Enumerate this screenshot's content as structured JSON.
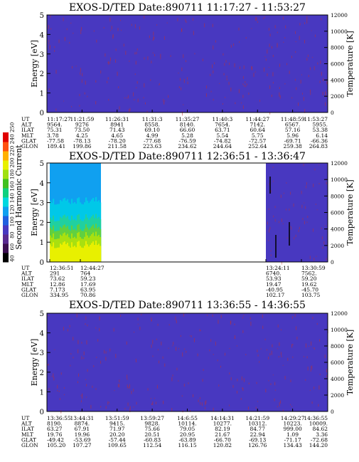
{
  "colors": {
    "background": "#4838c0",
    "speckle": "#c03030",
    "frame": "#000000",
    "colorbar": [
      "#000000",
      "#3c1050",
      "#5a2a90",
      "#4838c0",
      "#2060e0",
      "#10a0f0",
      "#00d8e0",
      "#10d080",
      "#40c020",
      "#a0e010",
      "#e8f000",
      "#ffb000",
      "#ff5010",
      "#e00000"
    ]
  },
  "colorbar": {
    "label": "Second Harmonic Current",
    "ticks": [
      "40",
      "60",
      "80",
      "100",
      "120",
      "140",
      "160",
      "180",
      "200",
      "220",
      "240",
      "250"
    ]
  },
  "chart_data": [
    {
      "type": "heatmap",
      "title": "EXOS-D/TED  Date:890711  11:17:27 - 11:53:27",
      "ylabel": "Energy [eV]",
      "y2label": "Temperature [K]",
      "ylim": [
        0,
        5
      ],
      "y2lim": [
        0,
        12000
      ],
      "yticks": [
        "0",
        "1",
        "2",
        "3",
        "4",
        "5"
      ],
      "y2ticks": [
        "0",
        "2000",
        "4000",
        "6000",
        "8000",
        "10000",
        "12000"
      ],
      "rows": [
        {
          "label": "UT",
          "values": [
            "11:17:27",
            "11:21:59",
            "11:26:31",
            "11:31:3",
            "11:35:27",
            "11:40:3",
            "11:44:27",
            "11:48:59",
            "11:53:27"
          ]
        },
        {
          "label": "ALT",
          "values": [
            "9564.",
            "9276",
            "8941",
            "8558.",
            "8140.",
            "7654.",
            "7142.",
            "6567.",
            "5955."
          ]
        },
        {
          "label": "ILAT",
          "values": [
            "75.31",
            "73.50",
            "71.43",
            "69.10",
            "66.60",
            "63.71",
            "60.64",
            "57.16",
            "53.38"
          ]
        },
        {
          "label": "MLT",
          "values": [
            "3.78",
            "4.25",
            "4.65",
            "4.99",
            "5.28",
            "5.54",
            "5.75",
            "5.96",
            "6.14"
          ]
        },
        {
          "label": "GLAT",
          "values": [
            "-77.58",
            "-78.13",
            "-78.20",
            "-77.68",
            "-76.59",
            "-74.82",
            "-72.57",
            "-69.71",
            "-66.36"
          ]
        },
        {
          "label": "GLON",
          "values": [
            "189.41",
            "199.86",
            "211.58",
            "223.63",
            "234.62",
            "244.64",
            "252.64",
            "259.38",
            "264.83"
          ]
        }
      ]
    },
    {
      "type": "heatmap",
      "title": "EXOS-D/TED  Date:890711  12:36:51 - 13:36:47",
      "ylabel": "Energy [eV]",
      "y2label": "Temperature [K]",
      "ylim": [
        0,
        5
      ],
      "y2lim": [
        0,
        12000
      ],
      "yticks": [
        "0",
        "1",
        "2",
        "3",
        "4",
        "5"
      ],
      "y2ticks": [
        "0",
        "2000",
        "4000",
        "6000",
        "8000",
        "10000",
        "12000"
      ],
      "rows": [
        {
          "label": "UT",
          "values": [
            "12:36:51",
            "12:44:27",
            "13:24:11",
            "13:30:59"
          ]
        },
        {
          "label": "ALT",
          "values": [
            "291",
            "764",
            "6740.",
            "7562."
          ]
        },
        {
          "label": "ILAT",
          "values": [
            "73.62",
            "59.23",
            "53.93",
            "59.20"
          ]
        },
        {
          "label": "MLT",
          "values": [
            "12.86",
            "17.69",
            "19.47",
            "19.62"
          ]
        },
        {
          "label": "GLAT",
          "values": [
            "7.173",
            "63.95",
            "-40.95",
            "-45.70"
          ]
        },
        {
          "label": "GLON",
          "values": [
            "334.95",
            "70.86",
            "102.17",
            "103.75"
          ]
        }
      ]
    },
    {
      "type": "heatmap",
      "title": "EXOS-D/TED  Date:890711  13:36:55 - 14:36:55",
      "ylabel": "Energy [eV]",
      "y2label": "Temperature [K]",
      "ylim": [
        0,
        5
      ],
      "y2lim": [
        0,
        12000
      ],
      "yticks": [
        "0",
        "1",
        "2",
        "3",
        "4",
        "5"
      ],
      "y2ticks": [
        "0",
        "2000",
        "4000",
        "6000",
        "8000",
        "10000",
        "12000"
      ],
      "rows": [
        {
          "label": "UT",
          "values": [
            "13:36:55",
            "13:44:31",
            "13:51:59",
            "13:59:27",
            "14:6:55",
            "14:14:31",
            "14:21:59",
            "14:29:27",
            "14:36:55"
          ]
        },
        {
          "label": "ALT",
          "values": [
            "8190.",
            "8874.",
            "9415.",
            "9828.",
            "10114.",
            "10277.",
            "10312.",
            "10223.",
            "10009."
          ]
        },
        {
          "label": "ILAT",
          "values": [
            "63.27",
            "67.91",
            "71.97",
            "75.66",
            "79.05",
            "82.19",
            "84.77",
            "999.00",
            "84.62"
          ]
        },
        {
          "label": "MLT",
          "values": [
            "19.76",
            "19.96",
            "20.20",
            "20.51",
            "20.95",
            "21.67",
            "22.94",
            "1.09",
            "3.36"
          ]
        },
        {
          "label": "GLAT",
          "values": [
            "-49.42",
            "-53.69",
            "-57.44",
            "-60.83",
            "-63.89",
            "-66.70",
            "-69.13",
            "-71.17",
            "-72.68"
          ]
        },
        {
          "label": "GLON",
          "values": [
            "105.20",
            "107.27",
            "109.65",
            "112.54",
            "116.15",
            "120.82",
            "126.76",
            "134.43",
            "144.20"
          ]
        }
      ]
    }
  ]
}
